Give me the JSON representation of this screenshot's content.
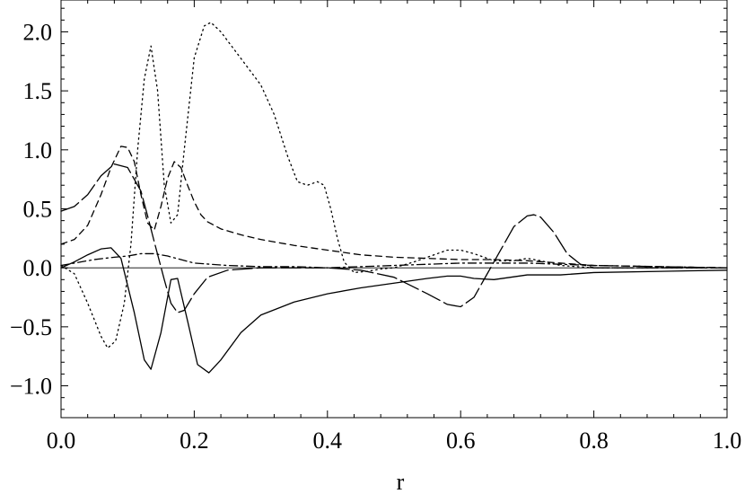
{
  "chart_data": {
    "type": "line",
    "xlabel": "r",
    "ylabel": "",
    "xlim": [
      0,
      1
    ],
    "ylim": [
      -1.27,
      2.27
    ],
    "grid": false,
    "xticks": [
      0.0,
      0.2,
      0.4,
      0.6,
      0.8,
      1.0
    ],
    "xtick_labels": [
      "0.0",
      "0.2",
      "0.4",
      "0.6",
      "0.8",
      "1.0"
    ],
    "yticks": [
      -1.0,
      -0.5,
      0.0,
      0.5,
      1.0,
      1.5,
      2.0
    ],
    "ytick_labels": [
      "−1.0",
      "−0.5",
      "0.0",
      "0.5",
      "1.0",
      "1.5",
      "2.0"
    ],
    "series": [
      {
        "style": "solid",
        "x": [
          0.0,
          0.02,
          0.04,
          0.06,
          0.075,
          0.09,
          0.11,
          0.125,
          0.135,
          0.15,
          0.165,
          0.175,
          0.19,
          0.205,
          0.222,
          0.24,
          0.27,
          0.3,
          0.35,
          0.4,
          0.45,
          0.5,
          0.55,
          0.58,
          0.6,
          0.62,
          0.65,
          0.7,
          0.75,
          0.8,
          0.9,
          1.0
        ],
        "values": [
          0.0,
          0.05,
          0.11,
          0.16,
          0.17,
          0.08,
          -0.38,
          -0.78,
          -0.86,
          -0.55,
          -0.1,
          -0.09,
          -0.45,
          -0.82,
          -0.89,
          -0.78,
          -0.55,
          -0.4,
          -0.29,
          -0.22,
          -0.17,
          -0.13,
          -0.09,
          -0.07,
          -0.07,
          -0.09,
          -0.1,
          -0.06,
          -0.06,
          -0.04,
          -0.03,
          -0.02
        ]
      },
      {
        "style": "dotted",
        "x": [
          0.0,
          0.02,
          0.04,
          0.06,
          0.07,
          0.082,
          0.095,
          0.105,
          0.115,
          0.125,
          0.135,
          0.145,
          0.155,
          0.165,
          0.175,
          0.185,
          0.2,
          0.215,
          0.225,
          0.24,
          0.26,
          0.28,
          0.3,
          0.32,
          0.34,
          0.355,
          0.37,
          0.385,
          0.395,
          0.405,
          0.415,
          0.425,
          0.44,
          0.46,
          0.48,
          0.5,
          0.53,
          0.56,
          0.58,
          0.6,
          0.62,
          0.65,
          0.68,
          0.7,
          0.72,
          0.75,
          0.8,
          0.9,
          1.0
        ],
        "values": [
          0.02,
          -0.05,
          -0.3,
          -0.58,
          -0.68,
          -0.62,
          -0.3,
          0.2,
          1.0,
          1.6,
          1.88,
          1.5,
          0.7,
          0.38,
          0.45,
          1.0,
          1.78,
          2.05,
          2.08,
          2.0,
          1.85,
          1.7,
          1.55,
          1.3,
          0.95,
          0.73,
          0.7,
          0.73,
          0.7,
          0.5,
          0.25,
          0.05,
          -0.04,
          -0.03,
          -0.01,
          0.0,
          0.05,
          0.11,
          0.15,
          0.15,
          0.12,
          0.06,
          0.06,
          0.08,
          0.06,
          0.02,
          0.0,
          0.0,
          0.0
        ]
      },
      {
        "style": "dashed",
        "x": [
          0.0,
          0.02,
          0.04,
          0.06,
          0.075,
          0.09,
          0.1,
          0.11,
          0.12,
          0.13,
          0.14,
          0.15,
          0.16,
          0.17,
          0.18,
          0.19,
          0.2,
          0.21,
          0.22,
          0.24,
          0.27,
          0.3,
          0.35,
          0.4,
          0.45,
          0.5,
          0.55,
          0.6,
          0.65,
          0.7,
          0.75,
          0.8,
          0.9,
          1.0
        ],
        "values": [
          0.2,
          0.24,
          0.36,
          0.62,
          0.85,
          1.03,
          1.02,
          0.9,
          0.62,
          0.38,
          0.32,
          0.52,
          0.76,
          0.9,
          0.85,
          0.7,
          0.56,
          0.45,
          0.39,
          0.33,
          0.28,
          0.24,
          0.19,
          0.15,
          0.11,
          0.09,
          0.08,
          0.07,
          0.07,
          0.06,
          0.04,
          0.02,
          0.01,
          0.0
        ]
      },
      {
        "style": "long-dash",
        "x": [
          0.0,
          0.02,
          0.04,
          0.06,
          0.08,
          0.1,
          0.12,
          0.13,
          0.14,
          0.155,
          0.165,
          0.175,
          0.185,
          0.2,
          0.22,
          0.25,
          0.3,
          0.35,
          0.4,
          0.45,
          0.5,
          0.55,
          0.58,
          0.6,
          0.62,
          0.64,
          0.66,
          0.68,
          0.7,
          0.71,
          0.72,
          0.74,
          0.76,
          0.78,
          0.8,
          0.85,
          0.9,
          1.0
        ],
        "values": [
          0.48,
          0.52,
          0.62,
          0.78,
          0.88,
          0.85,
          0.65,
          0.44,
          0.22,
          -0.1,
          -0.3,
          -0.38,
          -0.36,
          -0.22,
          -0.08,
          -0.02,
          0.0,
          0.0,
          0.0,
          -0.02,
          -0.08,
          -0.22,
          -0.31,
          -0.33,
          -0.25,
          -0.05,
          0.15,
          0.35,
          0.44,
          0.45,
          0.43,
          0.3,
          0.12,
          0.03,
          0.0,
          0.0,
          0.0,
          0.0
        ]
      },
      {
        "style": "dot-dash",
        "x": [
          0.0,
          0.02,
          0.05,
          0.08,
          0.1,
          0.12,
          0.14,
          0.16,
          0.18,
          0.2,
          0.25,
          0.3,
          0.35,
          0.4,
          0.45,
          0.5,
          0.55,
          0.6,
          0.65,
          0.7,
          0.75,
          0.8,
          0.9,
          1.0
        ],
        "values": [
          0.02,
          0.04,
          0.07,
          0.09,
          0.1,
          0.12,
          0.12,
          0.1,
          0.07,
          0.04,
          0.02,
          0.01,
          0.01,
          0.0,
          0.01,
          0.02,
          0.03,
          0.04,
          0.04,
          0.04,
          0.03,
          0.02,
          0.01,
          0.0
        ]
      }
    ]
  }
}
